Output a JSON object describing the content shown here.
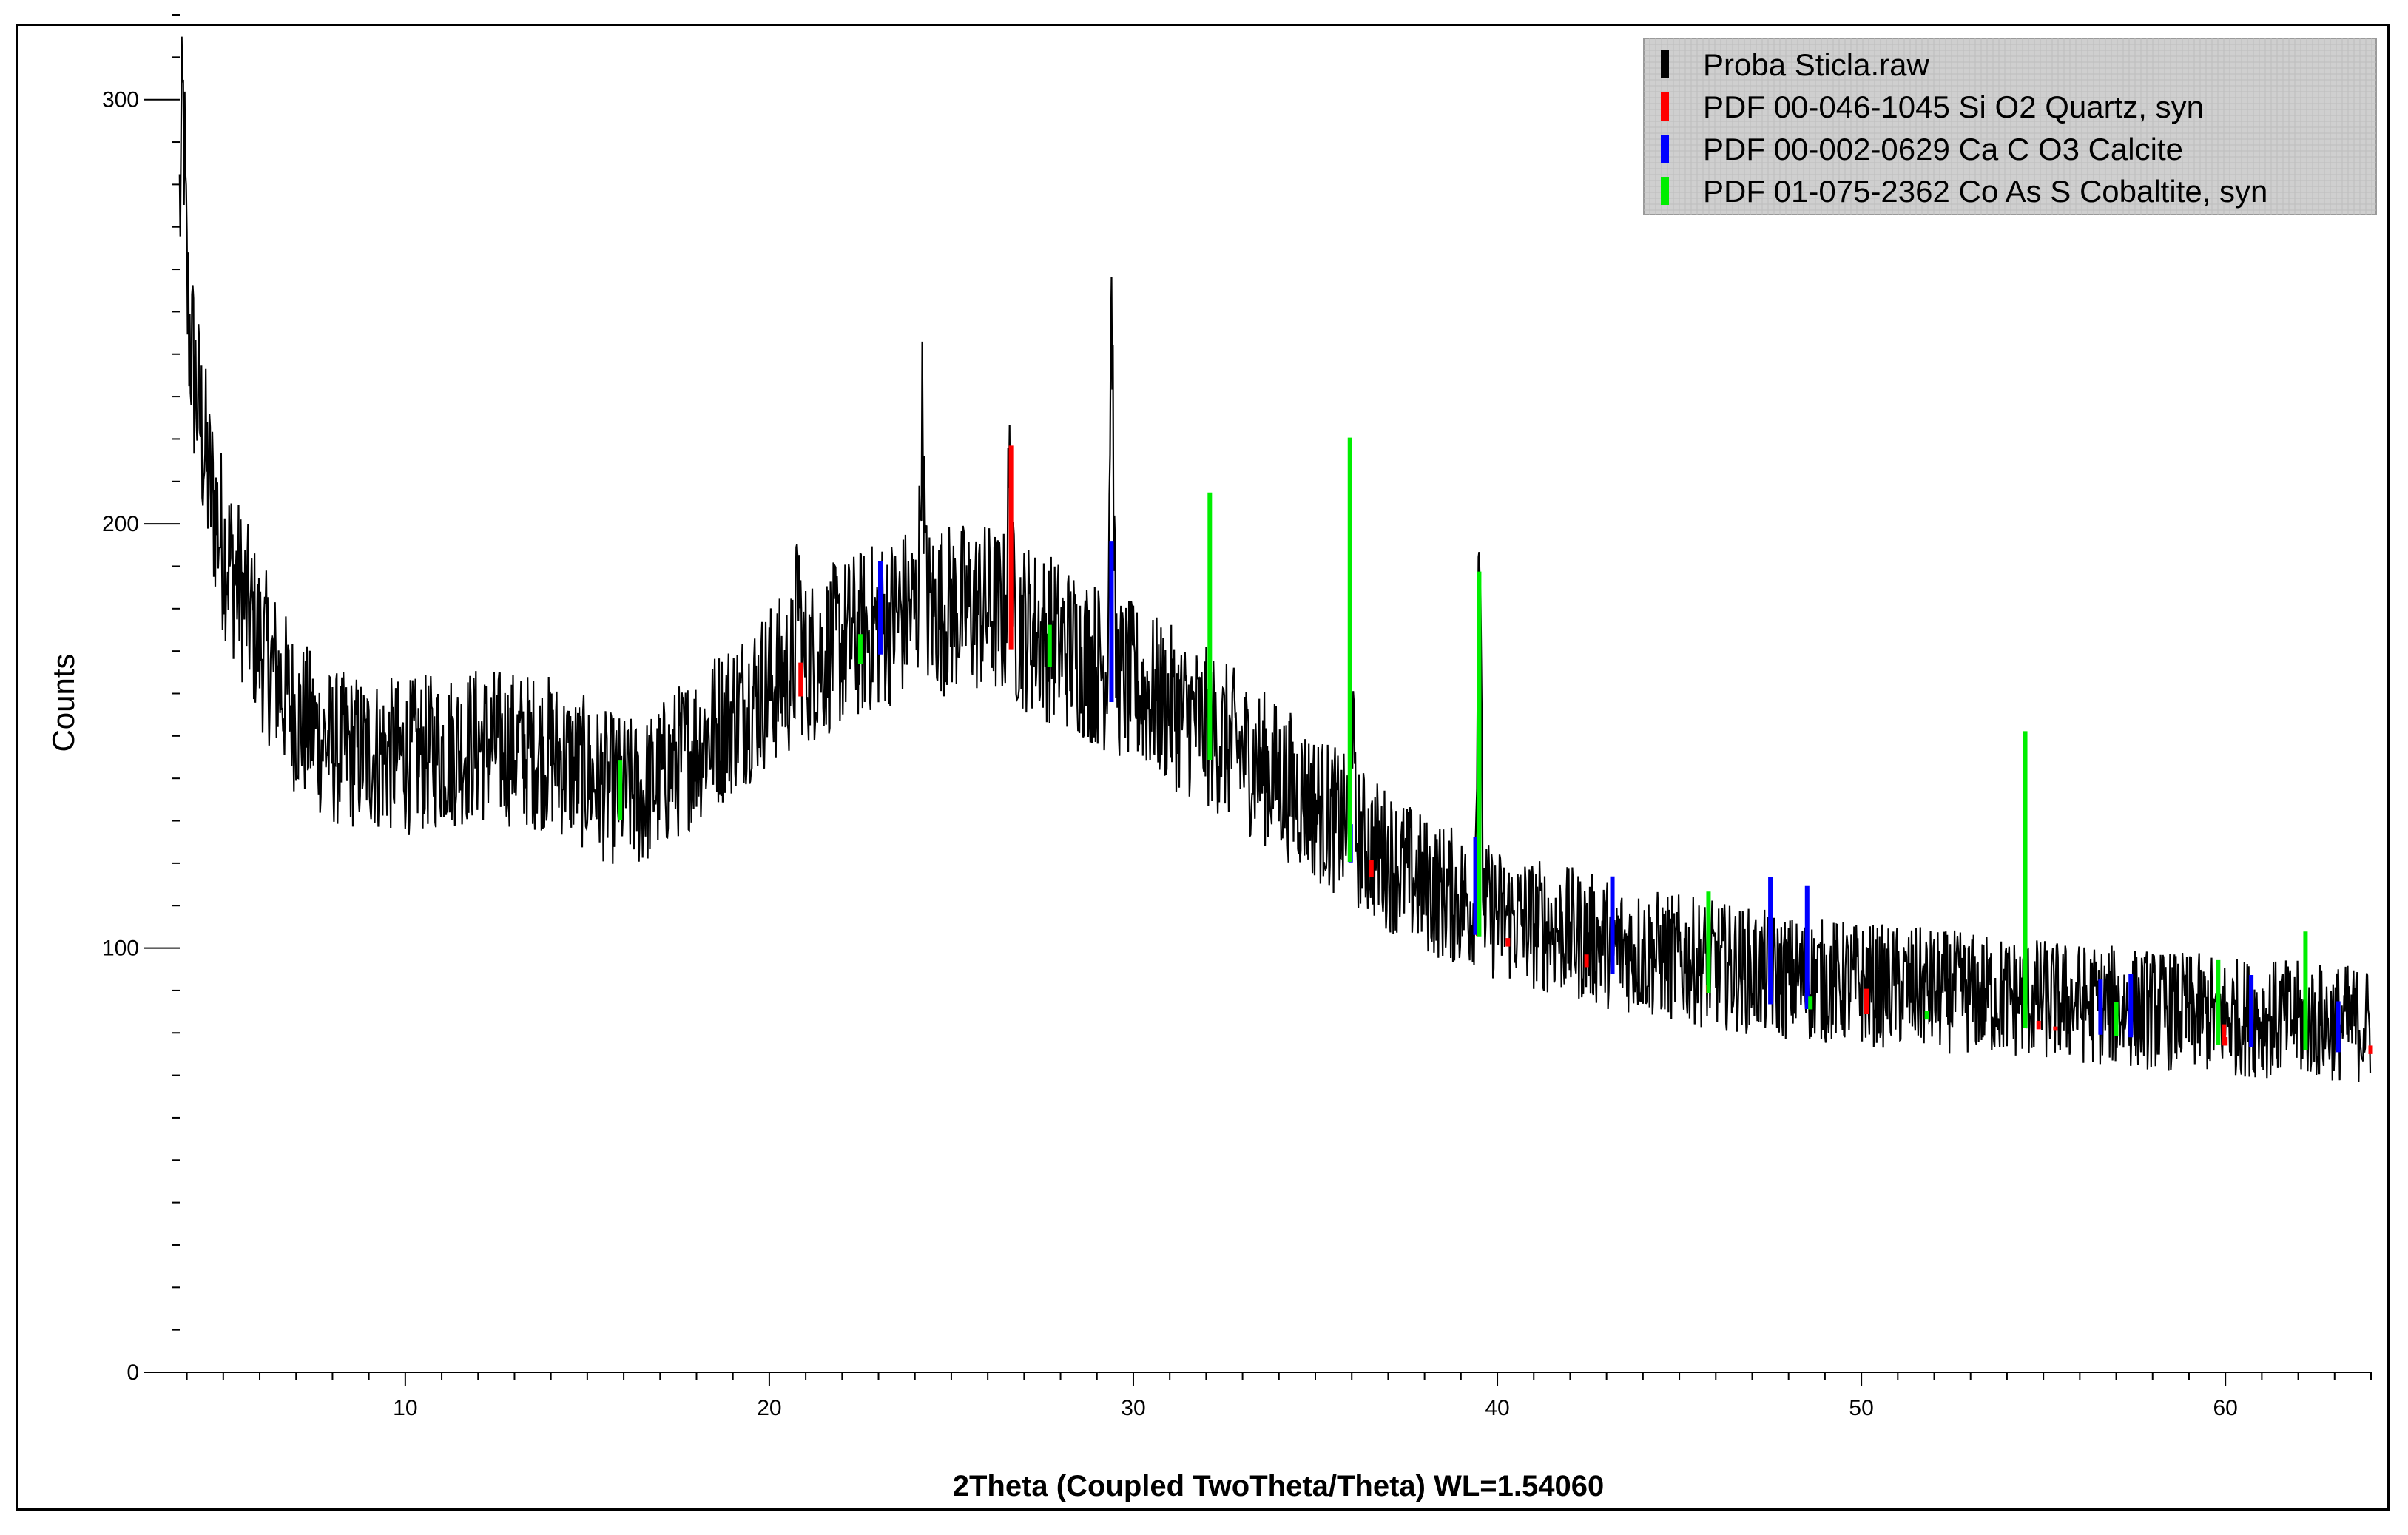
{
  "chart_data": {
    "type": "line",
    "xlabel": "2Theta (Coupled TwoTheta/Theta) WL=1.54060",
    "ylabel": "Counts",
    "xlim": [
      3.5,
      64.0
    ],
    "ylim": [
      0,
      320
    ],
    "x_ticks": [
      10,
      20,
      30,
      40,
      50,
      60
    ],
    "y_ticks": [
      0,
      100,
      200,
      300
    ],
    "grid": false,
    "legend_position": "top-right",
    "series": [
      {
        "name": "Proba Sticla.raw",
        "color": "#000000",
        "baseline_x": [
          3.8,
          4.2,
          4.6,
          5.0,
          6.0,
          7.0,
          8.0,
          10.0,
          12.0,
          14.0,
          15.5,
          16.5,
          18.0,
          20.0,
          22.0,
          24.0,
          26.0,
          28.0,
          30.0,
          32.0,
          34.0,
          36.0,
          38.0,
          40.0,
          44.0,
          48.0,
          52.0,
          56.0,
          60.0,
          64.0
        ],
        "baseline_y": [
          270,
          235,
          210,
          195,
          172,
          155,
          147,
          145,
          148,
          146,
          138,
          136,
          148,
          162,
          172,
          180,
          180,
          172,
          162,
          152,
          140,
          127,
          115,
          108,
          99,
          93,
          90,
          87,
          84,
          82
        ],
        "peaks": [
          {
            "x": 3.9,
            "y": 296
          },
          {
            "x": 24.2,
            "y": 225
          },
          {
            "x": 26.6,
            "y": 210
          },
          {
            "x": 29.4,
            "y": 253
          },
          {
            "x": 39.5,
            "y": 200
          },
          {
            "x": 36.0,
            "y": 158
          },
          {
            "x": 20.8,
            "y": 188
          }
        ]
      },
      {
        "name": "PDF 00-046-1045 Si O2 Quartz, syn",
        "color": "#ff0000",
        "sticks": [
          {
            "x": 20.86,
            "h": 8
          },
          {
            "x": 26.64,
            "h": 48
          },
          {
            "x": 36.54,
            "h": 4
          },
          {
            "x": 39.47,
            "h": 3
          },
          {
            "x": 40.29,
            "h": 2
          },
          {
            "x": 42.45,
            "h": 3
          },
          {
            "x": 45.79,
            "h": 2
          },
          {
            "x": 50.14,
            "h": 6
          },
          {
            "x": 54.87,
            "h": 2
          },
          {
            "x": 55.33,
            "h": 1
          },
          {
            "x": 59.96,
            "h": 5
          },
          {
            "x": 60.0,
            "h": 2
          },
          {
            "x": 63.99,
            "h": 2
          }
        ]
      },
      {
        "name": "PDF 00-002-0629 Ca C O3 Calcite",
        "color": "#0000ff",
        "sticks": [
          {
            "x": 23.05,
            "h": 22
          },
          {
            "x": 29.4,
            "h": 38
          },
          {
            "x": 35.97,
            "h": 9
          },
          {
            "x": 39.4,
            "h": 23
          },
          {
            "x": 43.16,
            "h": 23
          },
          {
            "x": 47.5,
            "h": 30
          },
          {
            "x": 48.51,
            "h": 29
          },
          {
            "x": 56.57,
            "h": 13
          },
          {
            "x": 57.4,
            "h": 15
          },
          {
            "x": 60.71,
            "h": 17
          },
          {
            "x": 63.1,
            "h": 12
          }
        ]
      },
      {
        "name": "PDF 01-075-2362 Co As S Cobaltite, syn",
        "color": "#00ee00",
        "sticks": [
          {
            "x": 15.9,
            "h": 14
          },
          {
            "x": 22.5,
            "h": 7
          },
          {
            "x": 27.7,
            "h": 10
          },
          {
            "x": 32.1,
            "h": 63
          },
          {
            "x": 35.95,
            "h": 100
          },
          {
            "x": 39.5,
            "h": 86
          },
          {
            "x": 45.8,
            "h": 24
          },
          {
            "x": 48.6,
            "h": 3
          },
          {
            "x": 51.8,
            "h": 2
          },
          {
            "x": 54.5,
            "h": 70
          },
          {
            "x": 57.0,
            "h": 8
          },
          {
            "x": 59.8,
            "h": 20
          },
          {
            "x": 62.2,
            "h": 28
          }
        ]
      }
    ]
  }
}
